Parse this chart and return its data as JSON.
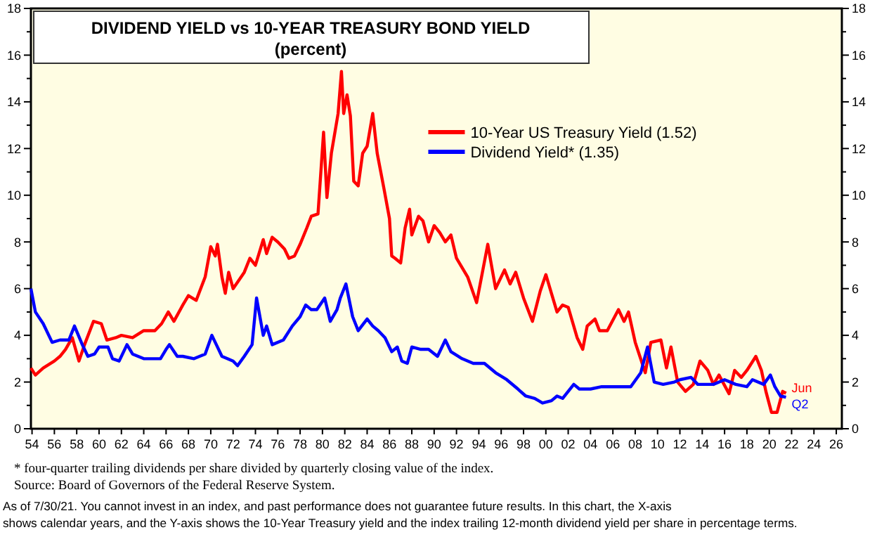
{
  "chart_data": {
    "type": "line",
    "title": "DIVIDEND YIELD vs 10-YEAR TREASURY BOND YIELD",
    "subtitle": "(percent)",
    "xlim": [
      1953.9,
      2026.5
    ],
    "xticks": [
      {
        "value": 1954,
        "label": "54"
      },
      {
        "value": 1956,
        "label": "56"
      },
      {
        "value": 1958,
        "label": "58"
      },
      {
        "value": 1960,
        "label": "60"
      },
      {
        "value": 1962,
        "label": "62"
      },
      {
        "value": 1964,
        "label": "64"
      },
      {
        "value": 1966,
        "label": "66"
      },
      {
        "value": 1968,
        "label": "68"
      },
      {
        "value": 1970,
        "label": "70"
      },
      {
        "value": 1972,
        "label": "72"
      },
      {
        "value": 1974,
        "label": "74"
      },
      {
        "value": 1976,
        "label": "76"
      },
      {
        "value": 1978,
        "label": "78"
      },
      {
        "value": 1980,
        "label": "80"
      },
      {
        "value": 1982,
        "label": "82"
      },
      {
        "value": 1984,
        "label": "84"
      },
      {
        "value": 1986,
        "label": "86"
      },
      {
        "value": 1988,
        "label": "88"
      },
      {
        "value": 1990,
        "label": "90"
      },
      {
        "value": 1992,
        "label": "92"
      },
      {
        "value": 1994,
        "label": "94"
      },
      {
        "value": 1996,
        "label": "96"
      },
      {
        "value": 1998,
        "label": "98"
      },
      {
        "value": 2000,
        "label": "00"
      },
      {
        "value": 2002,
        "label": "02"
      },
      {
        "value": 2004,
        "label": "04"
      },
      {
        "value": 2006,
        "label": "06"
      },
      {
        "value": 2008,
        "label": "08"
      },
      {
        "value": 2010,
        "label": "10"
      },
      {
        "value": 2012,
        "label": "12"
      },
      {
        "value": 2014,
        "label": "14"
      },
      {
        "value": 2016,
        "label": "16"
      },
      {
        "value": 2018,
        "label": "18"
      },
      {
        "value": 2020,
        "label": "20"
      },
      {
        "value": 2022,
        "label": "22"
      },
      {
        "value": 2024,
        "label": "24"
      },
      {
        "value": 2026,
        "label": "26"
      }
    ],
    "ylim": [
      0,
      18
    ],
    "yticks": [
      0,
      {
        "value": 1,
        "label": null
      },
      2,
      {
        "value": 3,
        "label": null
      },
      4,
      {
        "value": 5,
        "label": null
      },
      6,
      {
        "value": 7,
        "label": null
      },
      8,
      {
        "value": 9,
        "label": null
      },
      10,
      {
        "value": 11,
        "label": null
      },
      12,
      {
        "value": 13,
        "label": null
      },
      14,
      {
        "value": 15,
        "label": null
      },
      16,
      {
        "value": 17,
        "label": null
      },
      18
    ],
    "y2lim": [
      0,
      18
    ],
    "y2ticks": [
      0,
      {
        "value": 1,
        "label": null
      },
      2,
      {
        "value": 3,
        "label": null
      },
      4,
      {
        "value": 5,
        "label": null
      },
      6,
      {
        "value": 7,
        "label": null
      },
      8,
      {
        "value": 9,
        "label": null
      },
      10,
      {
        "value": 11,
        "label": null
      },
      12,
      {
        "value": 13,
        "label": null
      },
      14,
      {
        "value": 15,
        "label": null
      },
      16,
      {
        "value": 17,
        "label": null
      },
      18
    ],
    "grid": false,
    "legend": "top right",
    "line_style": "solid",
    "series": [
      {
        "name": "10-Year US Treasury Yield (1.52)",
        "color": "#ff0000",
        "x": [
          1953.9,
          1954.3,
          1955,
          1956,
          1956.5,
          1957,
          1957.6,
          1958.2,
          1958.7,
          1959.5,
          1960.2,
          1960.7,
          1961.5,
          1962,
          1963,
          1964,
          1965,
          1965.6,
          1966.2,
          1966.7,
          1967.5,
          1968,
          1968.7,
          1969.5,
          1970,
          1970.4,
          1970.6,
          1971,
          1971.3,
          1971.6,
          1972,
          1973,
          1973.5,
          1974,
          1974.7,
          1975,
          1975.5,
          1976,
          1976.6,
          1977,
          1977.5,
          1978,
          1978.6,
          1979,
          1979.6,
          1980.1,
          1980.4,
          1980.8,
          1981.4,
          1981.7,
          1981.9,
          1982.2,
          1982.5,
          1982.8,
          1983.2,
          1983.6,
          1984,
          1984.5,
          1984.9,
          1985.5,
          1986,
          1986.2,
          1986.5,
          1987,
          1987.4,
          1987.8,
          1988,
          1988.6,
          1989,
          1989.5,
          1990,
          1990.5,
          1991,
          1991.5,
          1992,
          1993,
          1993.8,
          1994.8,
          1995.5,
          1996.3,
          1996.8,
          1997.3,
          1998,
          1998.8,
          1999.5,
          2000,
          2000.5,
          2001,
          2001.5,
          2002,
          2002.8,
          2003.3,
          2003.7,
          2004.4,
          2004.8,
          2005.5,
          2006.5,
          2007,
          2007.4,
          2008,
          2008.9,
          2009.4,
          2010.3,
          2010.8,
          2011.2,
          2011.8,
          2012.5,
          2013.2,
          2013.8,
          2014.5,
          2015,
          2015.5,
          2016.4,
          2016.9,
          2017.5,
          2018,
          2018.8,
          2019.3,
          2019.7,
          2020.2,
          2020.7,
          2021.2,
          2021.5
        ],
        "values": [
          2.6,
          2.3,
          2.6,
          2.9,
          3.1,
          3.4,
          3.9,
          2.9,
          3.6,
          4.6,
          4.5,
          3.8,
          3.9,
          4.0,
          3.9,
          4.2,
          4.2,
          4.5,
          5.0,
          4.6,
          5.3,
          5.7,
          5.5,
          6.5,
          7.8,
          7.4,
          7.9,
          6.5,
          5.8,
          6.7,
          6.0,
          6.7,
          7.3,
          7.0,
          8.1,
          7.5,
          8.2,
          8.0,
          7.7,
          7.3,
          7.4,
          7.9,
          8.6,
          9.1,
          9.2,
          12.7,
          9.9,
          11.8,
          13.5,
          15.3,
          13.5,
          14.3,
          13.4,
          10.6,
          10.4,
          11.8,
          12.1,
          13.5,
          11.8,
          10.3,
          9.0,
          7.4,
          7.3,
          7.1,
          8.6,
          9.4,
          8.3,
          9.1,
          8.9,
          8.0,
          8.7,
          8.4,
          8.0,
          8.3,
          7.3,
          6.5,
          5.4,
          7.9,
          6.0,
          6.8,
          6.2,
          6.7,
          5.6,
          4.6,
          5.9,
          6.6,
          5.8,
          5.0,
          5.3,
          5.2,
          3.9,
          3.4,
          4.4,
          4.7,
          4.2,
          4.2,
          5.1,
          4.6,
          5.0,
          3.7,
          2.4,
          3.7,
          3.8,
          2.6,
          3.5,
          2.0,
          1.6,
          1.9,
          2.9,
          2.5,
          1.9,
          2.3,
          1.5,
          2.5,
          2.2,
          2.5,
          3.1,
          2.5,
          1.6,
          0.7,
          0.7,
          1.6,
          1.52
        ]
      },
      {
        "name": "Dividend Yield* (1.35)",
        "color": "#0000ff",
        "x": [
          1953.9,
          1954.3,
          1955,
          1955.8,
          1956.5,
          1957.3,
          1957.8,
          1958.5,
          1959,
          1959.6,
          1960,
          1960.8,
          1961.2,
          1961.8,
          1962.5,
          1963,
          1964,
          1965,
          1965.5,
          1966,
          1966.3,
          1967,
          1967.5,
          1968.5,
          1969,
          1969.5,
          1970.1,
          1970.5,
          1971,
          1972,
          1972.4,
          1973,
          1973.7,
          1974.1,
          1974.7,
          1975,
          1975.5,
          1976.5,
          1977.3,
          1978,
          1978.5,
          1979,
          1979.5,
          1980.2,
          1980.7,
          1981.3,
          1981.6,
          1982.1,
          1982.7,
          1983.2,
          1984,
          1984.5,
          1985,
          1985.6,
          1986.2,
          1986.7,
          1987.1,
          1987.6,
          1988,
          1988.8,
          1989.5,
          1990.3,
          1991,
          1991.5,
          1992.5,
          1993.5,
          1994.5,
          1995.5,
          1996.5,
          1997.5,
          1998.2,
          1999,
          1999.7,
          2000.5,
          2001,
          2001.5,
          2002.5,
          2003,
          2004,
          2005,
          2006,
          2007,
          2007.6,
          2008.5,
          2009.1,
          2009.7,
          2010.5,
          2011.5,
          2012,
          2013,
          2013.6,
          2015,
          2016,
          2017,
          2018,
          2018.5,
          2019.5,
          2020.1,
          2020.5,
          2021,
          2021.5
        ],
        "values": [
          6.0,
          5.0,
          4.5,
          3.7,
          3.8,
          3.8,
          4.4,
          3.6,
          3.1,
          3.2,
          3.5,
          3.5,
          3.0,
          2.9,
          3.6,
          3.2,
          3.0,
          3.0,
          3.0,
          3.4,
          3.6,
          3.1,
          3.1,
          3.0,
          3.1,
          3.2,
          4.0,
          3.6,
          3.1,
          2.9,
          2.7,
          3.1,
          3.6,
          5.6,
          4.0,
          4.4,
          3.6,
          3.8,
          4.4,
          4.8,
          5.3,
          5.1,
          5.1,
          5.6,
          4.6,
          5.1,
          5.6,
          6.2,
          4.8,
          4.2,
          4.7,
          4.4,
          4.2,
          3.9,
          3.3,
          3.5,
          2.9,
          2.8,
          3.5,
          3.4,
          3.4,
          3.1,
          3.8,
          3.3,
          3.0,
          2.8,
          2.8,
          2.4,
          2.1,
          1.7,
          1.4,
          1.3,
          1.1,
          1.2,
          1.4,
          1.3,
          1.9,
          1.7,
          1.7,
          1.8,
          1.8,
          1.8,
          1.8,
          2.4,
          3.5,
          2.0,
          1.9,
          2.0,
          2.1,
          2.2,
          1.9,
          1.9,
          2.1,
          1.9,
          1.8,
          2.1,
          1.9,
          2.3,
          1.8,
          1.4,
          1.35
        ]
      }
    ],
    "annotations": [
      {
        "text": "Jun",
        "x": 2021.5,
        "y": 1.52
      },
      {
        "text": "Q2",
        "x": 2021.5,
        "y": 1.35
      },
      "* four-quarter trailing dividends per share divided by quarterly closing value of the index.",
      "Source: Board of Governors of the Federal Reserve System.",
      "As of 7/30/21. You cannot invest in an index, and past performance does not guarantee future results. In this chart, the X-axis",
      "shows calendar years, and the Y-axis shows the 10-Year Treasury yield and the index trailing 12-month dividend yield per share in percentage terms."
    ]
  }
}
